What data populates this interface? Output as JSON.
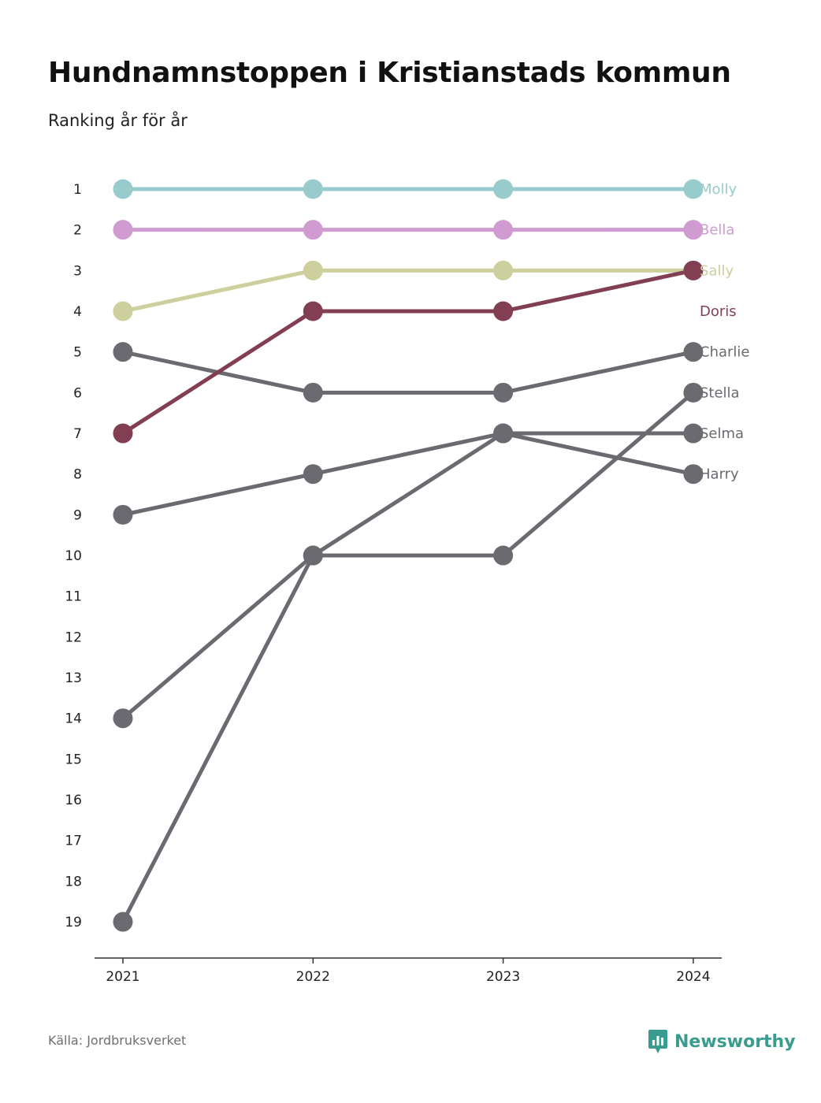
{
  "header": {
    "title": "Hundnamnstoppen i Kristianstads kommun",
    "subtitle": "Ranking år för år"
  },
  "footer": {
    "source": "Källa: Jordbruksverket",
    "brand": "Newsworthy",
    "brand_icon": "chart-bubble-icon",
    "brand_color": "#3a9b8f"
  },
  "chart_data": {
    "type": "line",
    "title": "Hundnamnstoppen i Kristianstads kommun",
    "subtitle": "Ranking år för år",
    "x": [
      "2021",
      "2022",
      "2023",
      "2024"
    ],
    "y_ticks": [
      1,
      2,
      3,
      4,
      5,
      6,
      7,
      8,
      9,
      10,
      11,
      12,
      13,
      14,
      15,
      16,
      17,
      18,
      19
    ],
    "ylim": [
      1,
      19
    ],
    "y_reversed": true,
    "grid": false,
    "legend": "direct labels at right end of lines",
    "series": [
      {
        "name": "Molly",
        "values": [
          1,
          1,
          1,
          1
        ],
        "color": "#98cbcb"
      },
      {
        "name": "Bella",
        "values": [
          2,
          2,
          2,
          2
        ],
        "color": "#cf9bd1"
      },
      {
        "name": "Sally",
        "values": [
          4,
          3,
          3,
          3
        ],
        "color": "#cdcf9c"
      },
      {
        "name": "Charlie",
        "values": [
          5,
          6,
          6,
          5
        ],
        "color": "#6b6a70"
      },
      {
        "name": "Selma",
        "values": [
          14,
          10,
          7,
          7
        ],
        "color": "#6b6a70"
      },
      {
        "name": "Harry",
        "values": [
          9,
          8,
          7,
          8
        ],
        "color": "#6b6a70"
      },
      {
        "name": "Stella",
        "values": [
          19,
          10,
          10,
          6
        ],
        "color": "#6b6a70"
      },
      {
        "name": "Doris",
        "values": [
          7,
          4,
          4,
          3
        ],
        "color": "#833f52"
      }
    ]
  }
}
